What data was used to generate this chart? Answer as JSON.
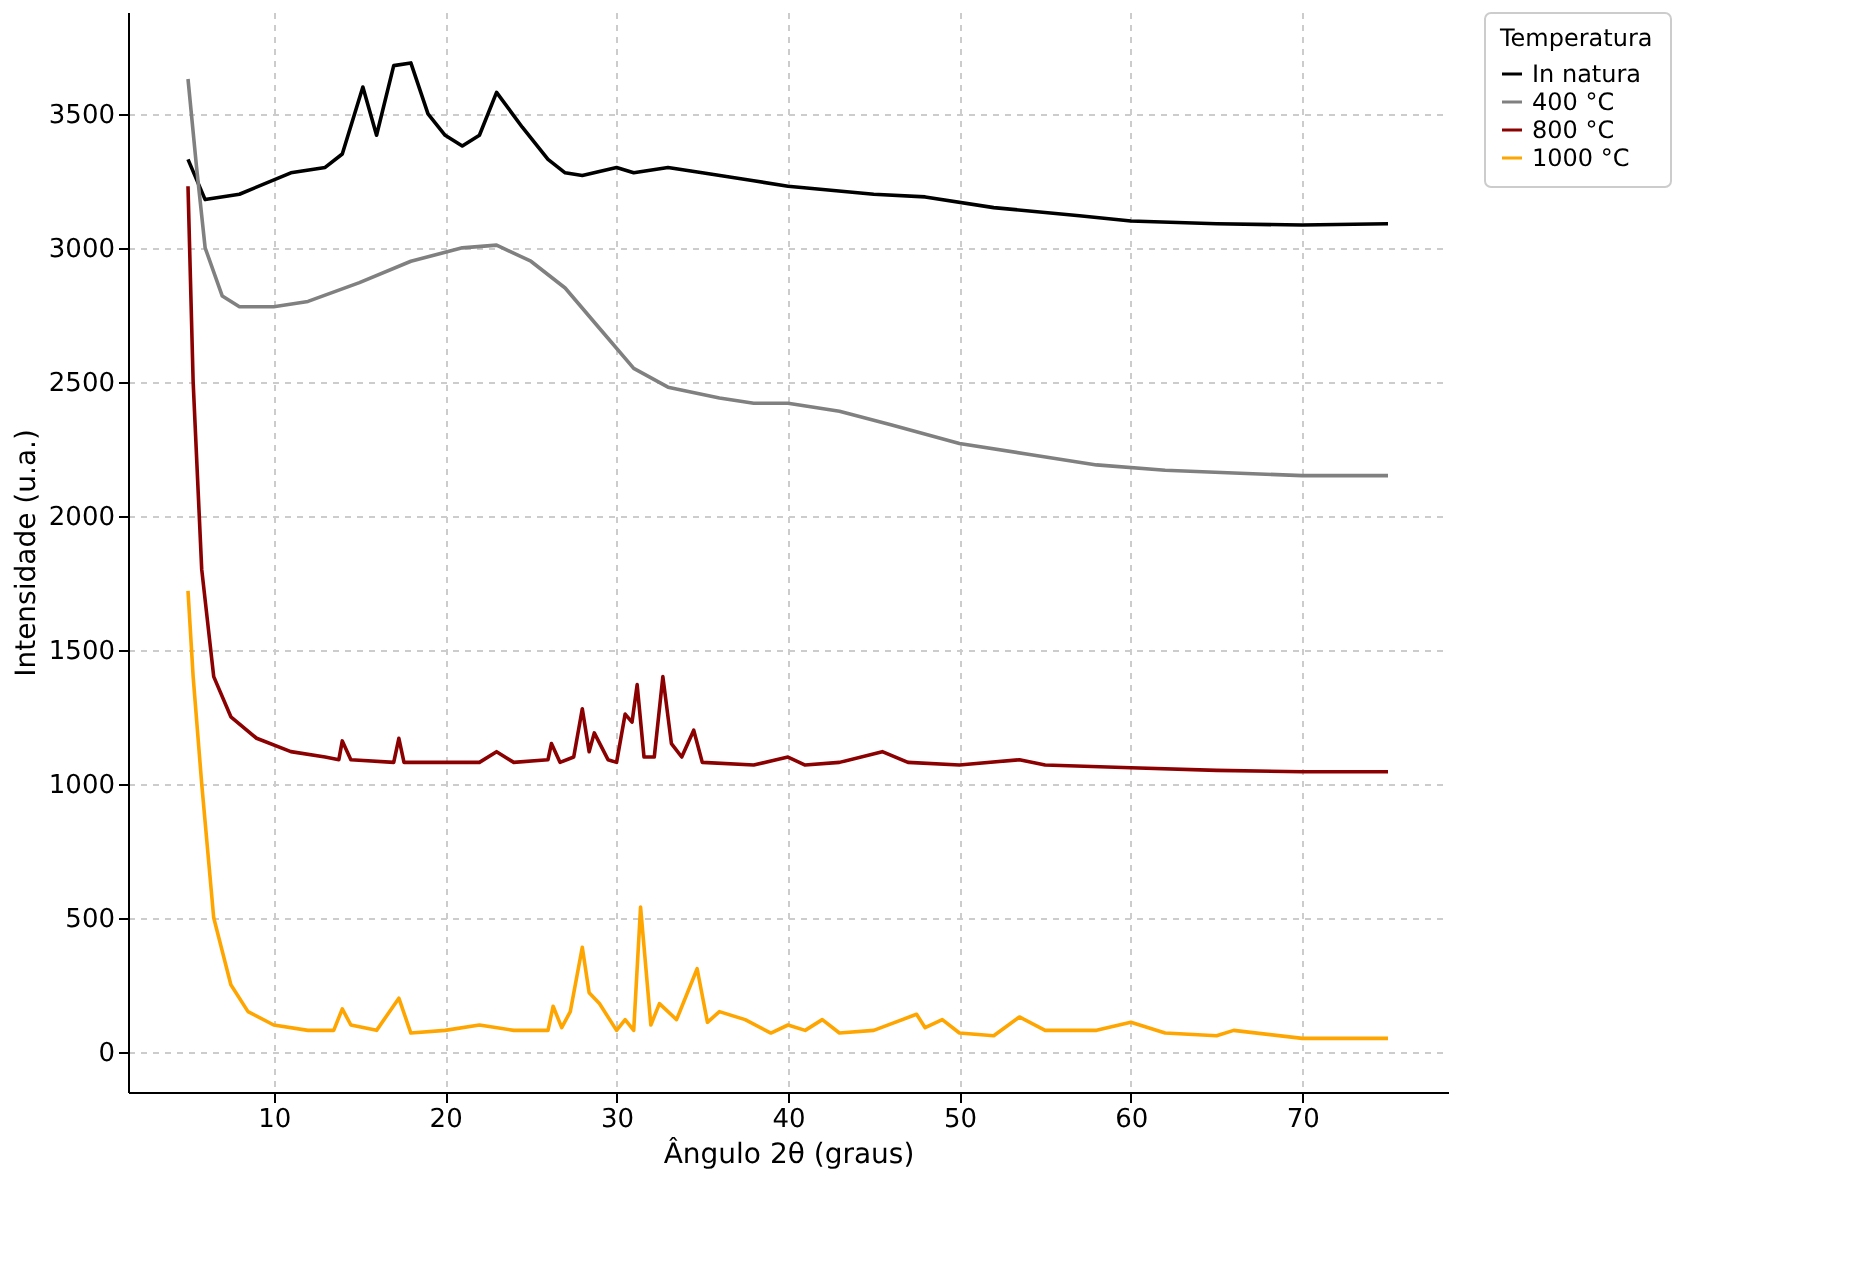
{
  "chart_data": {
    "type": "line",
    "xlabel": "Ângulo 2θ (graus)",
    "ylabel": "Intensidade (u.a.)",
    "legend_title": "Temperatura",
    "legend": "right",
    "grid": true,
    "line_style": "solid",
    "marker": "none",
    "xlim": [
      1.5,
      78.5
    ],
    "ylim": [
      -150,
      3880
    ],
    "xticks": [
      10,
      20,
      30,
      40,
      50,
      60,
      70
    ],
    "yticks": [
      0,
      500,
      1000,
      1500,
      2000,
      2500,
      3000,
      3500
    ],
    "series": [
      {
        "name": "In natura",
        "color": "#000000",
        "x": [
          5,
          6,
          8,
          11,
          13,
          14,
          15.2,
          16,
          17,
          18,
          19,
          20,
          21,
          22,
          23,
          24.5,
          26,
          27,
          28,
          30,
          31,
          33,
          35,
          38,
          40,
          45,
          48,
          52,
          57,
          60,
          65,
          70,
          75
        ],
        "values": [
          3330,
          3180,
          3200,
          3280,
          3300,
          3350,
          3600,
          3420,
          3680,
          3690,
          3500,
          3420,
          3380,
          3420,
          3580,
          3450,
          3330,
          3280,
          3270,
          3300,
          3280,
          3300,
          3280,
          3250,
          3230,
          3200,
          3190,
          3150,
          3120,
          3100,
          3090,
          3085,
          3090
        ]
      },
      {
        "name": "400 °C",
        "color": "#808080",
        "x": [
          5,
          5.5,
          6,
          7,
          8,
          10,
          12,
          15,
          18,
          21,
          23,
          25,
          27,
          29,
          31,
          33,
          36,
          38,
          40,
          43,
          46,
          50,
          54,
          58,
          62,
          66,
          70,
          75
        ],
        "values": [
          3630,
          3300,
          3000,
          2820,
          2780,
          2780,
          2800,
          2870,
          2950,
          3000,
          3010,
          2950,
          2850,
          2700,
          2550,
          2480,
          2440,
          2420,
          2420,
          2390,
          2340,
          2270,
          2230,
          2190,
          2170,
          2160,
          2150,
          2150
        ]
      },
      {
        "name": "800 °C",
        "color": "#8b0000",
        "x": [
          5,
          5.3,
          5.8,
          6.5,
          7.5,
          9,
          11,
          13,
          13.8,
          14,
          14.5,
          17,
          17.3,
          17.6,
          22,
          23,
          24,
          26,
          26.2,
          26.7,
          27.5,
          28,
          28.4,
          28.7,
          29.5,
          30,
          30.5,
          30.9,
          31.2,
          31.6,
          32.2,
          32.7,
          33.2,
          33.8,
          34.5,
          35,
          38,
          40,
          41,
          43,
          45.5,
          47,
          50,
          53.5,
          55,
          60,
          65,
          70,
          75
        ],
        "values": [
          3230,
          2500,
          1800,
          1400,
          1250,
          1170,
          1120,
          1100,
          1090,
          1160,
          1090,
          1080,
          1170,
          1080,
          1080,
          1120,
          1080,
          1090,
          1150,
          1080,
          1100,
          1280,
          1120,
          1190,
          1090,
          1080,
          1260,
          1230,
          1370,
          1100,
          1100,
          1400,
          1150,
          1100,
          1200,
          1080,
          1070,
          1100,
          1070,
          1080,
          1120,
          1080,
          1070,
          1090,
          1070,
          1060,
          1050,
          1045,
          1045
        ]
      },
      {
        "name": "1000 °C",
        "color": "#ffa500",
        "x": [
          5,
          5.3,
          5.8,
          6.5,
          7.5,
          8.5,
          10,
          12,
          13.5,
          14,
          14.5,
          16,
          17.3,
          18,
          20,
          22,
          24,
          26,
          26.3,
          26.8,
          27.3,
          28,
          28.4,
          29,
          30,
          30.5,
          31,
          31.4,
          32,
          32.5,
          33.5,
          34.7,
          35.3,
          36,
          37.5,
          39,
          40,
          41,
          42,
          43,
          45,
          47.5,
          48,
          49,
          50,
          52,
          53.5,
          55,
          58,
          60,
          62,
          65,
          66,
          70,
          75
        ],
        "values": [
          1720,
          1400,
          1000,
          500,
          250,
          150,
          100,
          80,
          80,
          160,
          100,
          80,
          200,
          70,
          80,
          100,
          80,
          80,
          170,
          90,
          150,
          390,
          220,
          180,
          80,
          120,
          80,
          540,
          100,
          180,
          120,
          310,
          110,
          150,
          120,
          70,
          100,
          80,
          120,
          70,
          80,
          140,
          90,
          120,
          70,
          60,
          130,
          80,
          80,
          110,
          70,
          60,
          80,
          50,
          50
        ]
      }
    ]
  }
}
